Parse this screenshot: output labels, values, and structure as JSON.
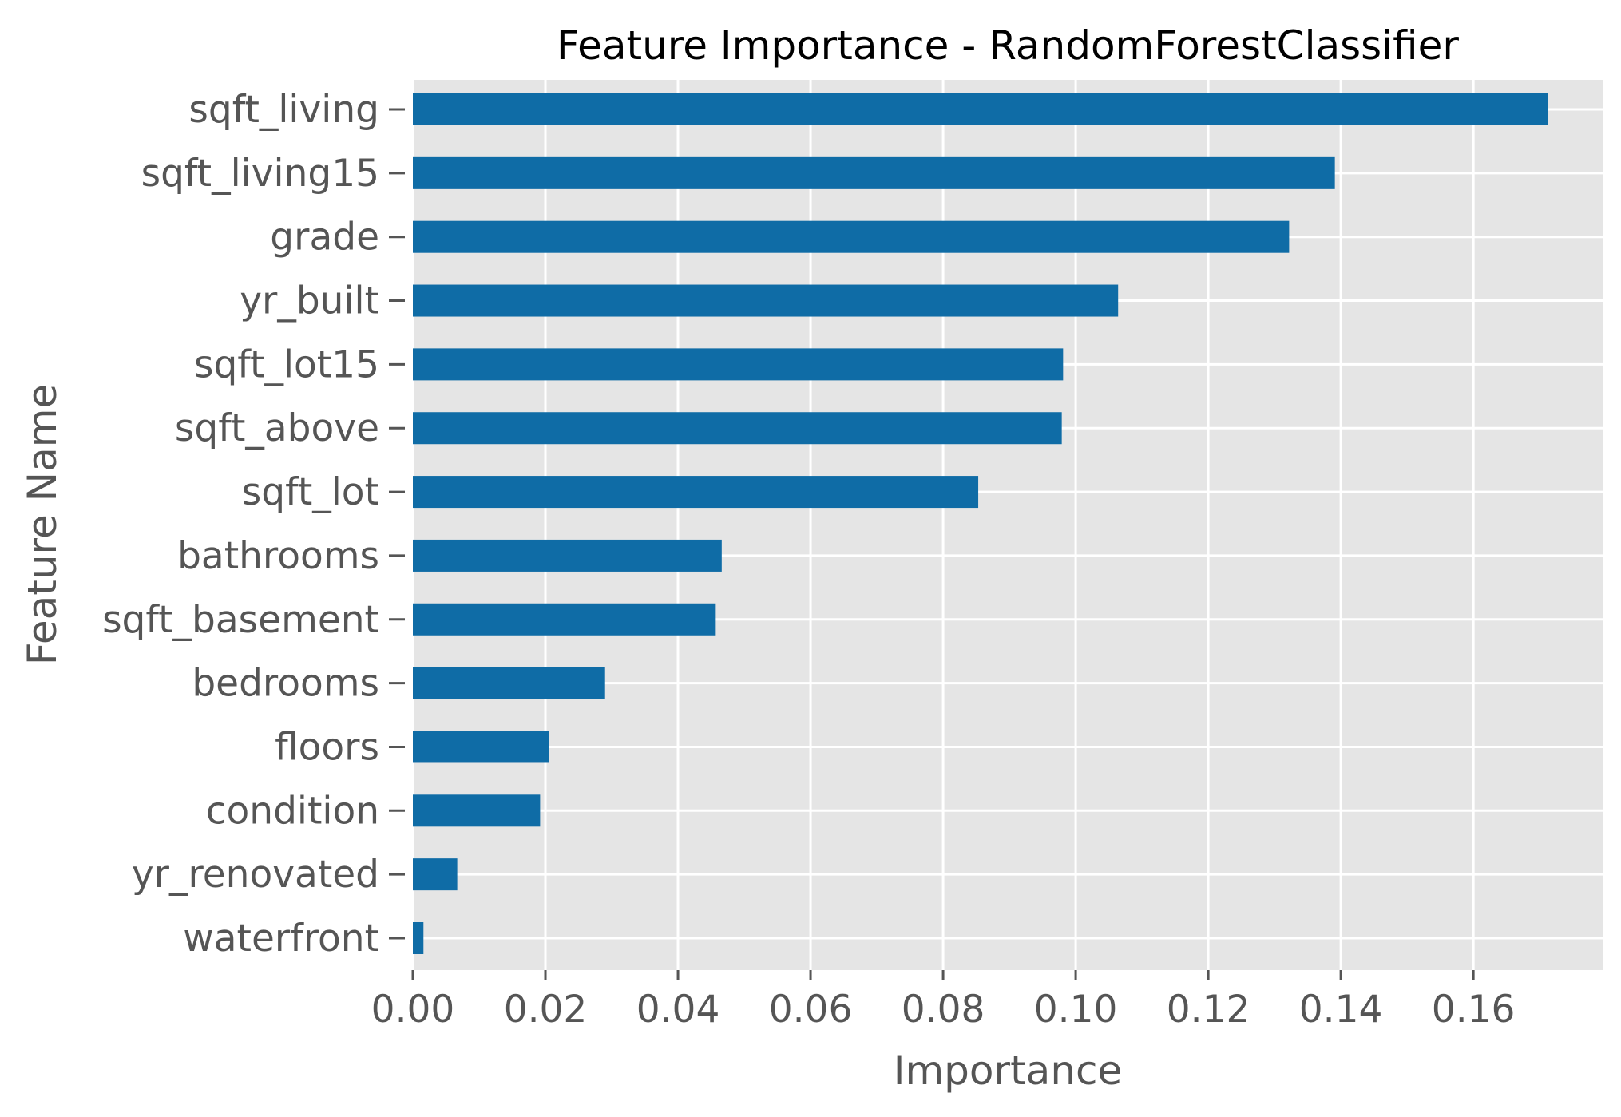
{
  "chart_data": {
    "type": "bar",
    "orientation": "horizontal",
    "title": "Feature Importance - RandomForestClassifier",
    "xlabel": "Importance",
    "ylabel": "Feature Name",
    "categories": [
      "sqft_living",
      "sqft_living15",
      "grade",
      "yr_built",
      "sqft_lot15",
      "sqft_above",
      "sqft_lot",
      "bathrooms",
      "sqft_basement",
      "bedrooms",
      "floors",
      "condition",
      "yr_renovated",
      "waterfront"
    ],
    "values": [
      0.1713,
      0.1391,
      0.1322,
      0.1064,
      0.0981,
      0.0979,
      0.0853,
      0.0466,
      0.0457,
      0.029,
      0.0206,
      0.0192,
      0.0067,
      0.0016
    ],
    "xlim": [
      0,
      0.1795
    ],
    "xticks": [
      "0.00",
      "0.02",
      "0.04",
      "0.06",
      "0.08",
      "0.10",
      "0.12",
      "0.14",
      "0.16"
    ],
    "grid": true,
    "legend": "none",
    "colors": {
      "bar": "#0f6ca6",
      "plot_background": "#e5e5e5",
      "grid": "#ffffff",
      "tick_text": "#555555",
      "title_text": "#000000"
    }
  }
}
